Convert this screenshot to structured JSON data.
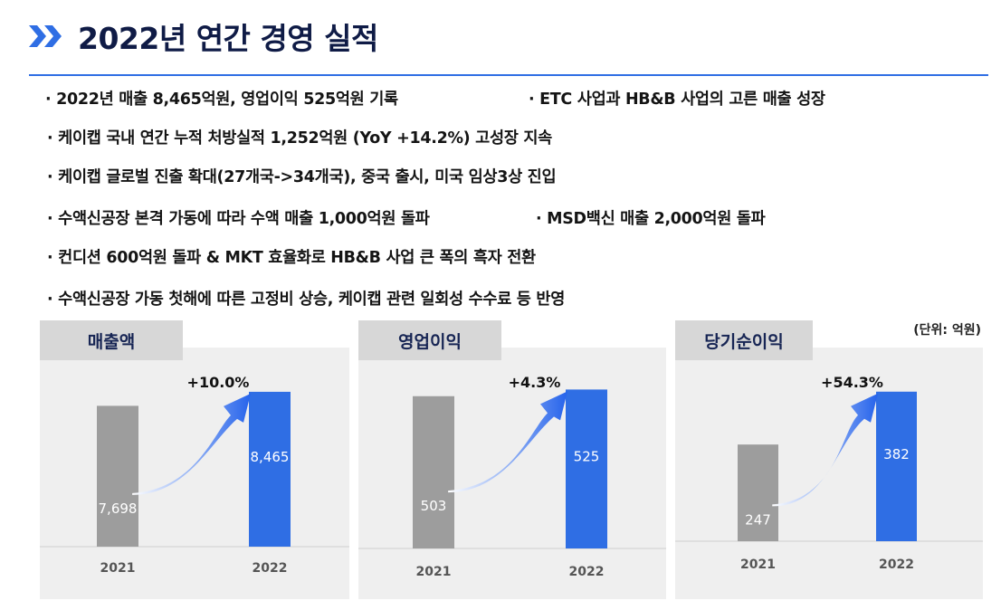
{
  "header": {
    "title": "2022년 연간 경영 실적"
  },
  "bullets": [
    "· 2022년 매출 8,465억원, 영업이익 525억원 기록",
    "· ETC 사업과 HB&B 사업의 고른 매출 성장",
    "· 케이캡 국내 연간 누적 처방실적 1,252억원 (YoY +14.2%) 고성장 지속",
    "· 케이캡 글로벌 진출 확대(27개국->34개국), 중국 출시, 미국 임상3상 진입",
    "· 수액신공장 본격 가동에 따라 수액 매출 1,000억원 돌파",
    "· MSD백신 매출 2,000억원 돌파",
    "· 컨디션 600억원 돌파 & MKT 효율화로 HB&B 사업 큰 폭의 흑자 전환",
    "· 수액신공장 가동 첫해에 따른 고정비 상승, 케이캡 관련 일회성 수수료 등 반영"
  ],
  "unit_note": "(단위: 억원)",
  "colors": {
    "bar_2021": "#9d9d9d",
    "bar_2022": "#2f6ee4",
    "arrow": "#2563eb",
    "title": "#0f1b46"
  },
  "chart_data": [
    {
      "type": "bar",
      "title": "매출액",
      "categories": [
        "2021",
        "2022"
      ],
      "values": [
        7698,
        8465
      ],
      "value_labels": [
        "7,698",
        "8,465"
      ],
      "growth_label": "+10.0%",
      "ylim": [
        0,
        9500
      ]
    },
    {
      "type": "bar",
      "title": "영업이익",
      "categories": [
        "2021",
        "2022"
      ],
      "values": [
        503,
        525
      ],
      "value_labels": [
        "503",
        "525"
      ],
      "growth_label": "+4.3%",
      "ylim": [
        0,
        580
      ]
    },
    {
      "type": "bar",
      "title": "당기순이익",
      "categories": [
        "2021",
        "2022"
      ],
      "values": [
        247,
        382
      ],
      "value_labels": [
        "247",
        "382"
      ],
      "growth_label": "+54.3%",
      "ylim": [
        0,
        430
      ]
    }
  ]
}
